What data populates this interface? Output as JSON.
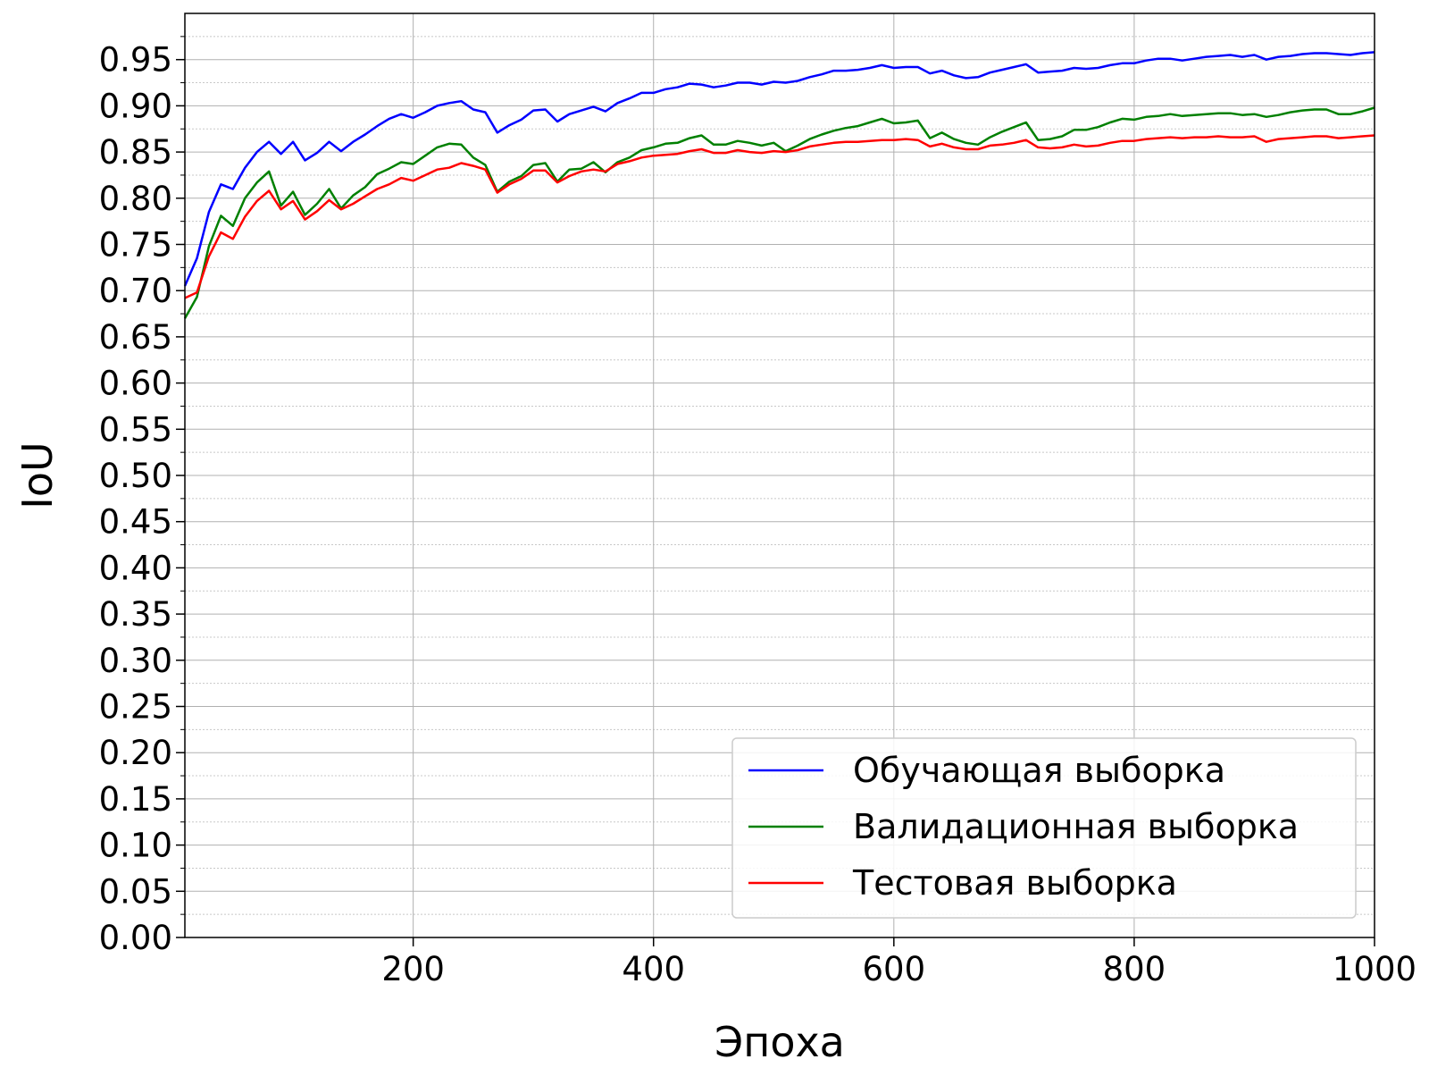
{
  "chart_data": {
    "type": "line",
    "title": "",
    "xlabel": "Эпоха",
    "ylabel": "IoU",
    "xlim": [
      10,
      1000
    ],
    "ylim": [
      0,
      1.0
    ],
    "x_ticks": [
      200,
      400,
      600,
      800,
      1000
    ],
    "y_ticks": [
      0.0,
      0.05,
      0.1,
      0.15,
      0.2,
      0.25,
      0.3,
      0.35,
      0.4,
      0.45,
      0.5,
      0.55,
      0.6,
      0.65,
      0.7,
      0.75,
      0.8,
      0.85,
      0.9,
      0.95
    ],
    "x_tick_labels": [
      "200",
      "400",
      "600",
      "800",
      "1000"
    ],
    "y_tick_labels": [
      "0.00",
      "0.05",
      "0.10",
      "0.15",
      "0.20",
      "0.25",
      "0.30",
      "0.35",
      "0.40",
      "0.45",
      "0.50",
      "0.55",
      "0.60",
      "0.65",
      "0.70",
      "0.75",
      "0.80",
      "0.85",
      "0.90",
      "0.95"
    ],
    "grid": true,
    "minor_grid": true,
    "legend_position": "bottom-right",
    "x": [
      10,
      20,
      30,
      40,
      50,
      60,
      70,
      80,
      90,
      100,
      110,
      120,
      130,
      140,
      150,
      160,
      170,
      180,
      190,
      200,
      210,
      220,
      230,
      240,
      250,
      260,
      270,
      280,
      290,
      300,
      310,
      320,
      330,
      340,
      350,
      360,
      370,
      380,
      390,
      400,
      410,
      420,
      430,
      440,
      450,
      460,
      470,
      480,
      490,
      500,
      510,
      520,
      530,
      540,
      550,
      560,
      570,
      580,
      590,
      600,
      610,
      620,
      630,
      640,
      650,
      660,
      670,
      680,
      690,
      700,
      710,
      720,
      730,
      740,
      750,
      760,
      770,
      780,
      790,
      800,
      810,
      820,
      830,
      840,
      850,
      860,
      870,
      880,
      890,
      900,
      910,
      920,
      930,
      940,
      950,
      960,
      970,
      980,
      990,
      1000
    ],
    "series": [
      {
        "name": "Обучающая выборка",
        "color": "#0000ff",
        "values": [
          0.705,
          0.735,
          0.785,
          0.815,
          0.81,
          0.833,
          0.85,
          0.861,
          0.848,
          0.861,
          0.841,
          0.849,
          0.861,
          0.851,
          0.861,
          0.869,
          0.878,
          0.886,
          0.891,
          0.887,
          0.893,
          0.9,
          0.903,
          0.905,
          0.896,
          0.893,
          0.871,
          0.879,
          0.885,
          0.895,
          0.896,
          0.883,
          0.891,
          0.895,
          0.899,
          0.894,
          0.903,
          0.908,
          0.914,
          0.914,
          0.918,
          0.92,
          0.924,
          0.923,
          0.92,
          0.922,
          0.925,
          0.925,
          0.923,
          0.926,
          0.925,
          0.927,
          0.931,
          0.934,
          0.938,
          0.938,
          0.939,
          0.941,
          0.944,
          0.941,
          0.942,
          0.942,
          0.935,
          0.938,
          0.933,
          0.93,
          0.931,
          0.936,
          0.939,
          0.942,
          0.945,
          0.936,
          0.937,
          0.938,
          0.941,
          0.94,
          0.941,
          0.944,
          0.946,
          0.946,
          0.949,
          0.951,
          0.951,
          0.949,
          0.951,
          0.953,
          0.954,
          0.955,
          0.953,
          0.955,
          0.95,
          0.953,
          0.954,
          0.956,
          0.957,
          0.957,
          0.956,
          0.955,
          0.957,
          0.958
        ]
      },
      {
        "name": "Валидационная выборка",
        "color": "#008000",
        "values": [
          0.67,
          0.693,
          0.748,
          0.781,
          0.77,
          0.8,
          0.817,
          0.829,
          0.792,
          0.807,
          0.782,
          0.794,
          0.81,
          0.789,
          0.803,
          0.812,
          0.826,
          0.832,
          0.839,
          0.837,
          0.846,
          0.855,
          0.859,
          0.858,
          0.844,
          0.836,
          0.807,
          0.818,
          0.824,
          0.836,
          0.838,
          0.818,
          0.831,
          0.832,
          0.839,
          0.828,
          0.839,
          0.844,
          0.852,
          0.855,
          0.859,
          0.86,
          0.865,
          0.868,
          0.858,
          0.858,
          0.862,
          0.86,
          0.857,
          0.86,
          0.851,
          0.857,
          0.864,
          0.869,
          0.873,
          0.876,
          0.878,
          0.882,
          0.886,
          0.881,
          0.882,
          0.884,
          0.865,
          0.871,
          0.864,
          0.86,
          0.858,
          0.866,
          0.872,
          0.877,
          0.882,
          0.863,
          0.864,
          0.867,
          0.874,
          0.874,
          0.877,
          0.882,
          0.886,
          0.885,
          0.888,
          0.889,
          0.891,
          0.889,
          0.89,
          0.891,
          0.892,
          0.892,
          0.89,
          0.891,
          0.888,
          0.89,
          0.893,
          0.895,
          0.896,
          0.896,
          0.891,
          0.891,
          0.894,
          0.898
        ]
      },
      {
        "name": "Тестовая выборка",
        "color": "#ff0000",
        "values": [
          0.692,
          0.698,
          0.737,
          0.763,
          0.756,
          0.78,
          0.797,
          0.808,
          0.788,
          0.797,
          0.777,
          0.786,
          0.798,
          0.788,
          0.794,
          0.802,
          0.81,
          0.815,
          0.822,
          0.819,
          0.825,
          0.831,
          0.833,
          0.838,
          0.835,
          0.831,
          0.806,
          0.815,
          0.821,
          0.83,
          0.83,
          0.817,
          0.824,
          0.829,
          0.831,
          0.829,
          0.837,
          0.84,
          0.844,
          0.846,
          0.847,
          0.848,
          0.851,
          0.853,
          0.849,
          0.849,
          0.852,
          0.85,
          0.849,
          0.851,
          0.85,
          0.852,
          0.856,
          0.858,
          0.86,
          0.861,
          0.861,
          0.862,
          0.863,
          0.863,
          0.864,
          0.863,
          0.856,
          0.859,
          0.855,
          0.853,
          0.853,
          0.857,
          0.858,
          0.86,
          0.863,
          0.855,
          0.854,
          0.855,
          0.858,
          0.856,
          0.857,
          0.86,
          0.862,
          0.862,
          0.864,
          0.865,
          0.866,
          0.865,
          0.866,
          0.866,
          0.867,
          0.866,
          0.866,
          0.867,
          0.861,
          0.864,
          0.865,
          0.866,
          0.867,
          0.867,
          0.865,
          0.866,
          0.867,
          0.868
        ]
      }
    ]
  }
}
